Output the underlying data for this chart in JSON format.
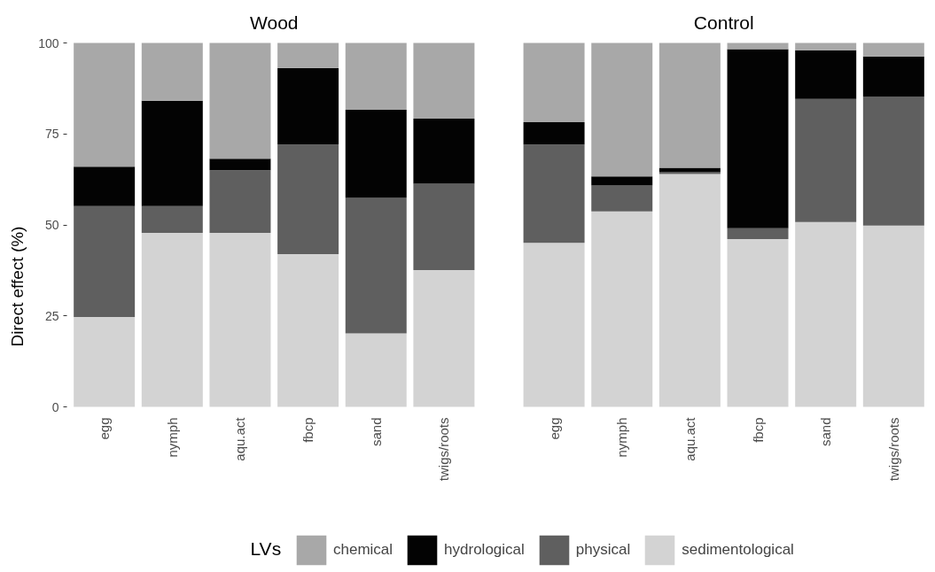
{
  "chart_data": [
    {
      "type": "bar",
      "title": "Wood",
      "ylabel": "Direct effect (%)",
      "stacked": true,
      "categories": [
        "egg",
        "nymph",
        "aqu.act",
        "fbcp",
        "sand",
        "twigs/roots"
      ],
      "ylim": [
        0,
        100
      ],
      "yticks": [
        0,
        25,
        50,
        75,
        100
      ],
      "legend": "bottom",
      "legend_title": "LVs",
      "series": [
        {
          "name": "sedimentological",
          "color": "#d3d3d3",
          "values": [
            24.7,
            47.8,
            47.8,
            42.0,
            20.2,
            37.6
          ]
        },
        {
          "name": "physical",
          "color": "#5f5f5f",
          "values": [
            30.5,
            7.4,
            17.2,
            30.1,
            37.2,
            23.7
          ]
        },
        {
          "name": "hydrological",
          "color": "#030303",
          "values": [
            10.8,
            28.9,
            3.2,
            21.0,
            24.2,
            17.9
          ]
        },
        {
          "name": "chemical",
          "color": "#a8a8a8",
          "values": [
            34.0,
            15.9,
            31.8,
            6.9,
            18.4,
            20.8
          ]
        }
      ]
    },
    {
      "type": "bar",
      "title": "Control",
      "stacked": true,
      "categories": [
        "egg",
        "nymph",
        "aqu.act",
        "fbcp",
        "sand",
        "twigs/roots"
      ],
      "ylim": [
        0,
        100
      ],
      "tick_labels": "x",
      "series": [
        {
          "color": "#d3d3d3",
          "values": [
            45.1,
            53.7,
            64.0,
            46.1,
            50.8,
            49.8
          ]
        },
        {
          "color": "#5f5f5f",
          "values": [
            27.0,
            7.1,
            0.5,
            3.0,
            33.8,
            35.5
          ]
        },
        {
          "color": "#030303",
          "values": [
            6.1,
            2.5,
            1.2,
            49.2,
            13.4,
            11.0
          ]
        },
        {
          "color": "#a8a8a8",
          "values": [
            21.8,
            36.7,
            34.3,
            1.7,
            2.0,
            3.7
          ]
        }
      ]
    }
  ]
}
